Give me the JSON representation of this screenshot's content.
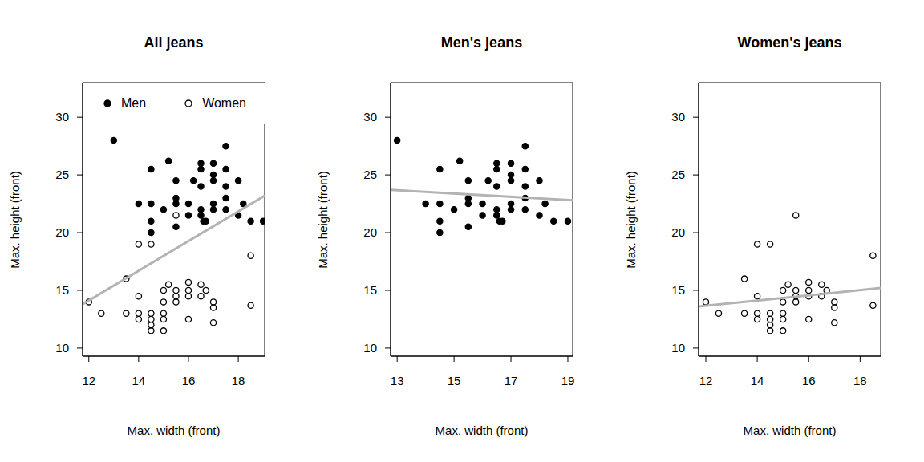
{
  "chart_data": [
    {
      "type": "scatter",
      "title": "All jeans",
      "x_label": "Max. width (front)",
      "y_label": "Max. height (front)",
      "xlim": [
        11.75,
        19.06
      ],
      "ylim": [
        9.3,
        33
      ],
      "xticks": [
        12,
        14,
        16,
        18
      ],
      "yticks": [
        10,
        15,
        20,
        25,
        30
      ],
      "legend": "top",
      "series": [
        {
          "name": "Men",
          "color": "#000000",
          "marker": "filled",
          "x": [
            13,
            14,
            14.5,
            14.5,
            14.5,
            14.5,
            15,
            15.2,
            15.5,
            15.5,
            15.5,
            15.5,
            16,
            16,
            16.2,
            16.5,
            16.5,
            16.5,
            16.5,
            16.5,
            16.6,
            16.7,
            17,
            17,
            17,
            17,
            17,
            17.5,
            17.5,
            17.5,
            17.5,
            17.5,
            18,
            18.2,
            18,
            18.5,
            19
          ],
          "y": [
            28,
            22.5,
            25.5,
            22.5,
            21,
            20,
            22,
            26.2,
            24.5,
            23,
            22.5,
            20.5,
            22.5,
            21.5,
            24.5,
            26,
            25.5,
            24,
            22,
            21.5,
            21,
            21,
            26,
            25,
            24.5,
            22.5,
            22,
            27.5,
            25.5,
            24,
            23,
            22,
            24.5,
            22.5,
            21.5,
            21,
            21
          ]
        },
        {
          "name": "Women",
          "color": "#000000",
          "marker": "open",
          "x": [
            12,
            12.5,
            13.5,
            13.5,
            14,
            14,
            14,
            14,
            14.5,
            14.5,
            14.5,
            14.5,
            14.5,
            15,
            15,
            15,
            15,
            15,
            15.2,
            15.5,
            15.5,
            15.5,
            15.5,
            16,
            16,
            16,
            16,
            16.5,
            16.5,
            16.7,
            17,
            17,
            17,
            18.5,
            18.5
          ],
          "y": [
            14,
            13,
            16,
            13,
            19,
            14.5,
            13,
            12.5,
            19,
            13,
            12.5,
            12,
            11.5,
            12.5,
            11.5,
            13,
            14,
            15,
            15.5,
            21.5,
            14.5,
            14,
            15,
            15.7,
            15,
            14.5,
            12.5,
            15.5,
            14.5,
            15,
            14,
            13.5,
            12.2,
            18,
            13.7
          ]
        }
      ],
      "fit": {
        "color": "#b3b3b3",
        "x": [
          11.75,
          19.06
        ],
        "y": [
          13.8,
          23.2
        ]
      }
    },
    {
      "type": "scatter",
      "title": "Men's jeans",
      "x_label": "Max. width (front)",
      "y_label": "Max. height (front)",
      "xlim": [
        12.77,
        19.17
      ],
      "ylim": [
        9.3,
        33
      ],
      "xticks": [
        13,
        15,
        17,
        19
      ],
      "yticks": [
        10,
        15,
        20,
        25,
        30
      ],
      "series": [
        {
          "color": "#000000",
          "marker": "filled",
          "x": [
            13,
            14,
            14.5,
            14.5,
            14.5,
            14.5,
            15,
            15.2,
            15.5,
            15.5,
            15.5,
            15.5,
            16,
            16,
            16.2,
            16.5,
            16.5,
            16.5,
            16.5,
            16.5,
            16.6,
            16.7,
            17,
            17,
            17,
            17,
            17,
            17.5,
            17.5,
            17.5,
            17.5,
            17.5,
            18,
            18.2,
            18,
            18.5,
            19
          ],
          "y": [
            28,
            22.5,
            25.5,
            22.5,
            21,
            20,
            22,
            26.2,
            24.5,
            23,
            22.5,
            20.5,
            22.5,
            21.5,
            24.5,
            26,
            25.5,
            24,
            22,
            21.5,
            21,
            21,
            26,
            25,
            24.5,
            22.5,
            22,
            27.5,
            25.5,
            24,
            23,
            22,
            24.5,
            22.5,
            21.5,
            21,
            21
          ]
        }
      ],
      "fit": {
        "color": "#b3b3b3",
        "x": [
          12.77,
          19.17
        ],
        "y": [
          23.7,
          22.8
        ]
      }
    },
    {
      "type": "scatter",
      "title": "Women's jeans",
      "x_label": "Max. width (front)",
      "y_label": "Max. height (front)",
      "xlim": [
        11.72,
        18.8
      ],
      "ylim": [
        9.3,
        33
      ],
      "xticks": [
        12,
        14,
        16,
        18
      ],
      "yticks": [
        10,
        15,
        20,
        25,
        30
      ],
      "series": [
        {
          "color": "#000000",
          "marker": "open",
          "x": [
            12,
            12.5,
            13.5,
            13.5,
            14,
            14,
            14,
            14,
            14.5,
            14.5,
            14.5,
            14.5,
            14.5,
            15,
            15,
            15,
            15,
            15,
            15.2,
            15.5,
            15.5,
            15.5,
            15.5,
            16,
            16,
            16,
            16,
            16.5,
            16.5,
            16.7,
            17,
            17,
            17,
            18.5,
            18.5
          ],
          "y": [
            14,
            13,
            16,
            13,
            19,
            14.5,
            13,
            12.5,
            19,
            13,
            12.5,
            12,
            11.5,
            12.5,
            11.5,
            13,
            14,
            15,
            15.5,
            21.5,
            14.5,
            14,
            15,
            15.7,
            15,
            14.5,
            12.5,
            15.5,
            14.5,
            15,
            14,
            13.5,
            12.2,
            18,
            13.7
          ]
        }
      ],
      "fit": {
        "color": "#b3b3b3",
        "x": [
          11.72,
          18.8
        ],
        "y": [
          13.6,
          15.2
        ]
      }
    }
  ]
}
